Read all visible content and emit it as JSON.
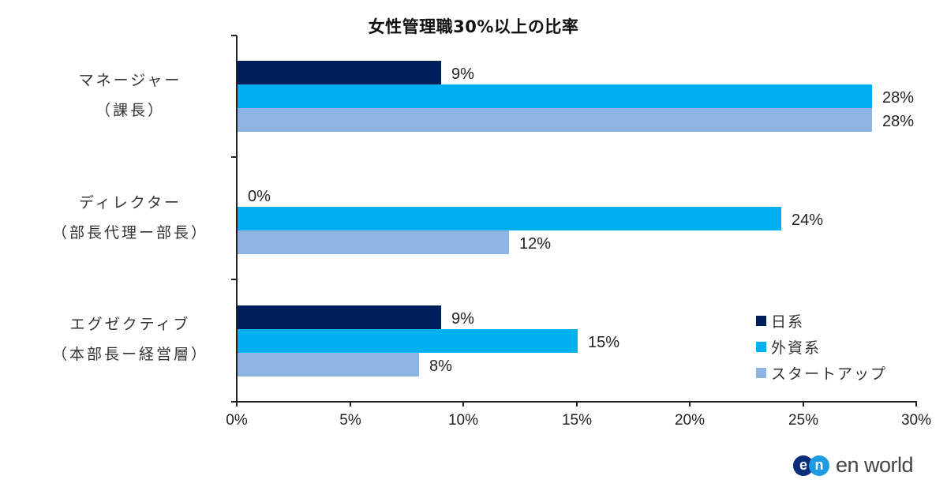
{
  "chart_data": {
    "type": "bar",
    "orientation": "horizontal",
    "title": "女性管理職30%以上の比率",
    "xlabel": "",
    "ylabel": "",
    "xlim": [
      0,
      30
    ],
    "x_ticks": [
      "0%",
      "5%",
      "10%",
      "15%",
      "20%",
      "25%",
      "30%"
    ],
    "grid": false,
    "legend_position": "lower right (inside plot)",
    "categories": [
      {
        "line1": "マネージャー",
        "line2": "（課長）"
      },
      {
        "line1": "ディレクター",
        "line2": "（部長代理ー部長）"
      },
      {
        "line1": "エグゼクティブ",
        "line2": "（本部長ー経営層）"
      }
    ],
    "series": [
      {
        "name": "日系",
        "color": "#001E5C",
        "values": [
          9,
          0,
          9
        ],
        "labels": [
          "9%",
          "0%",
          "9%"
        ]
      },
      {
        "name": "外資系",
        "color": "#00B0F0",
        "values": [
          28,
          24,
          15
        ],
        "labels": [
          "28%",
          "24%",
          "15%"
        ]
      },
      {
        "name": "スタートアップ",
        "color": "#8EB4E3",
        "values": [
          28,
          12,
          8
        ],
        "labels": [
          "28%",
          "12%",
          "8%"
        ]
      }
    ]
  },
  "logo": {
    "mark_left": "e",
    "mark_right": "n",
    "text": "en world",
    "color_left": "#0A2F7A",
    "color_right": "#1E9BE0"
  }
}
